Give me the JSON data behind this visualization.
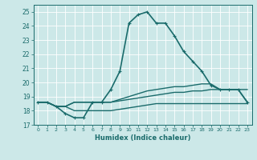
{
  "xlabel": "Humidex (Indice chaleur)",
  "ylabel": "",
  "xlim": [
    -0.5,
    23.5
  ],
  "ylim": [
    17,
    25.5
  ],
  "yticks": [
    17,
    18,
    19,
    20,
    21,
    22,
    23,
    24,
    25
  ],
  "xticks": [
    0,
    1,
    2,
    3,
    4,
    5,
    6,
    7,
    8,
    9,
    10,
    11,
    12,
    13,
    14,
    15,
    16,
    17,
    18,
    19,
    20,
    21,
    22,
    23
  ],
  "bg_color": "#cce8e8",
  "line_color": "#1a6b6b",
  "grid_color": "#ffffff",
  "lines": [
    {
      "x": [
        0,
        1,
        2,
        3,
        4,
        5,
        6,
        7,
        8,
        9,
        10,
        11,
        12,
        13,
        14,
        15,
        16,
        17,
        18,
        19,
        20,
        21,
        22,
        23
      ],
      "y": [
        18.6,
        18.6,
        18.3,
        17.8,
        17.5,
        17.5,
        18.6,
        18.6,
        19.5,
        20.8,
        24.2,
        24.8,
        25.0,
        24.2,
        24.2,
        23.3,
        22.2,
        21.5,
        20.8,
        19.8,
        19.5,
        19.5,
        19.5,
        18.6
      ],
      "style": "-",
      "marker": "+",
      "lw": 1.2
    },
    {
      "x": [
        0,
        1,
        2,
        3,
        4,
        5,
        6,
        7,
        8,
        9,
        10,
        11,
        12,
        13,
        14,
        15,
        16,
        17,
        18,
        19,
        20,
        21,
        22,
        23
      ],
      "y": [
        18.6,
        18.6,
        18.3,
        18.3,
        18.6,
        18.6,
        18.6,
        18.6,
        18.6,
        18.8,
        19.0,
        19.2,
        19.4,
        19.5,
        19.6,
        19.7,
        19.7,
        19.8,
        19.9,
        19.9,
        19.5,
        19.5,
        19.5,
        19.5
      ],
      "style": "-",
      "marker": null,
      "lw": 1.0
    },
    {
      "x": [
        0,
        1,
        2,
        3,
        4,
        5,
        6,
        7,
        8,
        9,
        10,
        11,
        12,
        13,
        14,
        15,
        16,
        17,
        18,
        19,
        20,
        21,
        22,
        23
      ],
      "y": [
        18.6,
        18.6,
        18.3,
        18.3,
        18.6,
        18.6,
        18.6,
        18.6,
        18.6,
        18.7,
        18.8,
        18.9,
        19.0,
        19.1,
        19.2,
        19.3,
        19.3,
        19.4,
        19.4,
        19.5,
        19.5,
        19.5,
        19.5,
        18.6
      ],
      "style": "-",
      "marker": null,
      "lw": 1.0
    },
    {
      "x": [
        0,
        1,
        2,
        3,
        4,
        5,
        6,
        7,
        8,
        9,
        10,
        11,
        12,
        13,
        14,
        15,
        16,
        17,
        18,
        19,
        20,
        21,
        22,
        23
      ],
      "y": [
        18.6,
        18.6,
        18.3,
        18.3,
        18.0,
        18.0,
        18.0,
        18.0,
        18.0,
        18.1,
        18.2,
        18.3,
        18.4,
        18.5,
        18.5,
        18.5,
        18.5,
        18.5,
        18.5,
        18.5,
        18.5,
        18.5,
        18.5,
        18.5
      ],
      "style": "-",
      "marker": null,
      "lw": 1.0
    }
  ]
}
